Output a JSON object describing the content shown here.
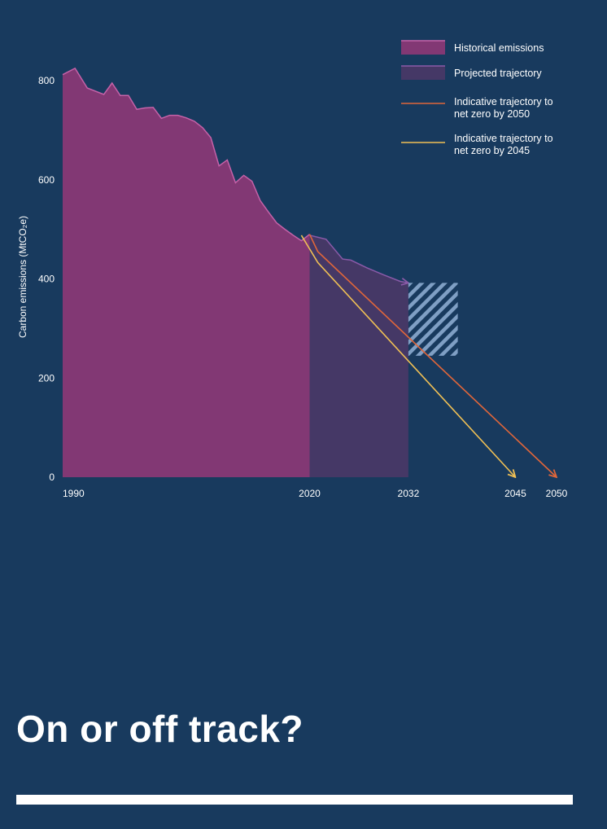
{
  "colors": {
    "background": "#183a5e",
    "historical": "#823874",
    "historical_line": "#c562a8",
    "projected": "#453866",
    "projected_line": "#8a5aa8",
    "net_zero_2050": "#e0663a",
    "net_zero_2045": "#f0c055",
    "hatch": "#7f9fc4"
  },
  "chart_data": {
    "type": "area",
    "ylabel": "Carbon emissions (MtCO₂e)",
    "ylim": [
      0,
      820
    ],
    "yticks": [
      "800",
      "600",
      "400",
      "200",
      "0"
    ],
    "xlim": [
      1990,
      2050
    ],
    "xticks": [
      "1990",
      "2020",
      "2032",
      "2045",
      "2050"
    ],
    "series": [
      {
        "name": "Historical emissions",
        "type": "area",
        "x": [
          1990,
          1991.5,
          1993,
          1995,
          1996,
          1997,
          1998,
          1999,
          2000,
          2001,
          2002,
          2003,
          2004,
          2005,
          2006,
          2007,
          2008,
          2009,
          2010,
          2011,
          2012,
          2013,
          2014,
          2015,
          2016,
          2017,
          2018,
          2019,
          2020
        ],
        "values": [
          812,
          825,
          785,
          772,
          795,
          770,
          770,
          742,
          745,
          746,
          724,
          730,
          730,
          725,
          718,
          705,
          685,
          628,
          640,
          594,
          609,
          597,
          558,
          535,
          513,
          500,
          488,
          477,
          490
        ]
      },
      {
        "name": "Projected trajectory",
        "type": "area",
        "x": [
          2020,
          2022,
          2024,
          2025,
          2027,
          2029,
          2031,
          2032
        ],
        "values": [
          488,
          480,
          440,
          438,
          422,
          408,
          395,
          392
        ]
      },
      {
        "name": "Indicative trajectory to net zero by 2050",
        "type": "line",
        "x": [
          2020,
          2021,
          2050
        ],
        "values": [
          490,
          455,
          0
        ]
      },
      {
        "name": "Indicative trajectory to net zero by 2045",
        "type": "line",
        "x": [
          2019,
          2021,
          2045
        ],
        "values": [
          488,
          433,
          0
        ]
      }
    ],
    "annotations": [
      {
        "type": "uncertainty-range",
        "x": [
          2032,
          2038
        ],
        "y": [
          245,
          392
        ]
      }
    ]
  },
  "legend": {
    "items": [
      {
        "label": "Historical emissions",
        "lines": [
          "Historical emissions"
        ]
      },
      {
        "label": "Projected trajectory",
        "lines": [
          "Projected trajectory"
        ]
      },
      {
        "label": "Indicative trajectory to net zero by 2050",
        "lines": [
          "Indicative trajectory to",
          "net zero by 2050"
        ]
      },
      {
        "label": "Indicative trajectory to net zero by 2045",
        "lines": [
          "Indicative trajectory to",
          "net zero by 2045"
        ]
      }
    ]
  },
  "heading": "On or off track?"
}
